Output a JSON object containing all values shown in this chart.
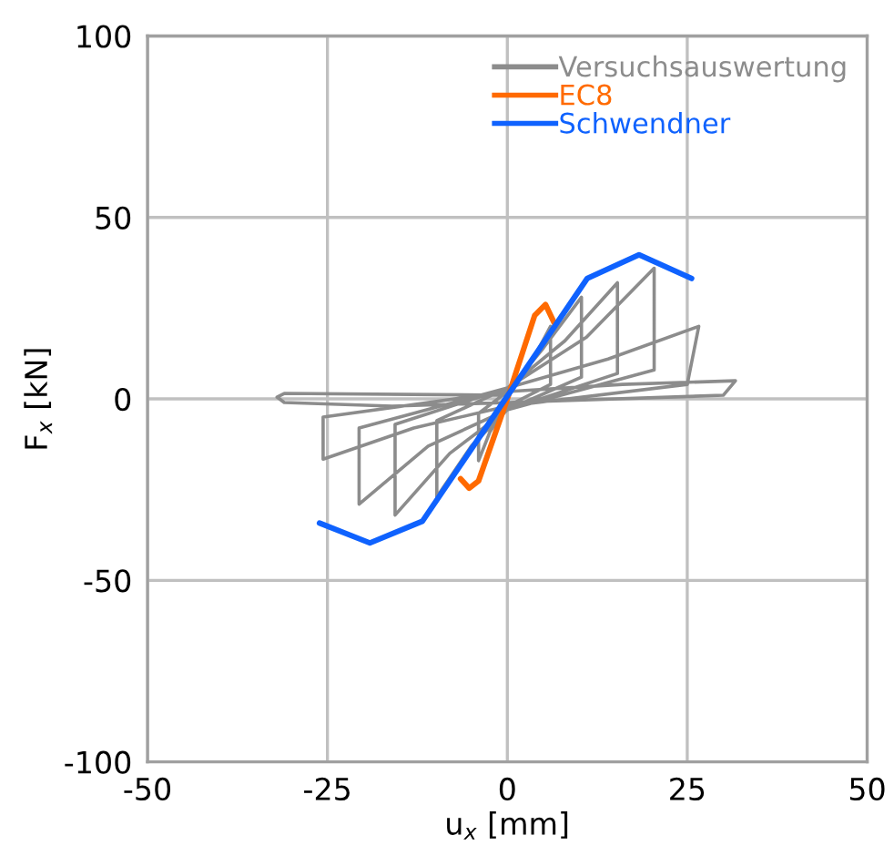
{
  "chart_data": {
    "type": "line",
    "xlabel": "u$_{x}$ [mm]",
    "ylabel": "F$_{x}$ [kN]",
    "xlim": [
      -50,
      50
    ],
    "xticks": [
      -50,
      -25,
      0,
      25,
      50
    ],
    "ylim": [
      -100,
      100
    ],
    "yticks": [
      -100,
      -50,
      0,
      50,
      100
    ],
    "grid": true,
    "legend": "top right",
    "marker": "none",
    "line_style": "solid",
    "series": [
      {
        "name": "Versuchsauswertung",
        "color": "#8c8c8c",
        "x": [
          0,
          3.6,
          6,
          6,
          0,
          -2.4,
          -4,
          -4,
          0,
          5,
          10.3,
          10.3,
          0,
          -5,
          -9.8,
          -9.8,
          0,
          8,
          15.3,
          15.3,
          0,
          -8,
          -15.6,
          -15.6,
          0,
          11,
          20.4,
          20.4,
          0,
          -11,
          -20.6,
          -20.6,
          0,
          14,
          26.6,
          25,
          0,
          -13,
          -25.6,
          -25.6,
          0,
          16,
          31.7,
          30,
          0,
          -16,
          -31,
          -32,
          -31,
          0
        ],
        "values": [
          2,
          11,
          20,
          4,
          -2,
          -9,
          -17,
          -4,
          2,
          14,
          28,
          6,
          -3,
          -13,
          -27,
          -6,
          3,
          16,
          32,
          7,
          -3,
          -15,
          -32,
          -7,
          3,
          17,
          36,
          8,
          -3,
          -13,
          -29,
          -8,
          3,
          11,
          20,
          4,
          -2,
          -8,
          -16.6,
          -5,
          2,
          4,
          5,
          1,
          -1,
          -2,
          -1,
          0.5,
          1.5,
          1
        ]
      },
      {
        "name": "EC8",
        "color": "#ff6a00",
        "x": [
          -6.5,
          -5.3,
          -4,
          0,
          3.8,
          5.3,
          6.5
        ],
        "values": [
          -22,
          -24.6,
          -22.6,
          0,
          23,
          26,
          21
        ]
      },
      {
        "name": "Schwendner",
        "color": "#0f62fe",
        "x": [
          -26.1,
          -19.1,
          -11.8,
          11.1,
          18.3,
          25.6
        ],
        "values": [
          -34.2,
          -39.7,
          -33.7,
          33.2,
          39.7,
          33.2
        ]
      }
    ]
  }
}
